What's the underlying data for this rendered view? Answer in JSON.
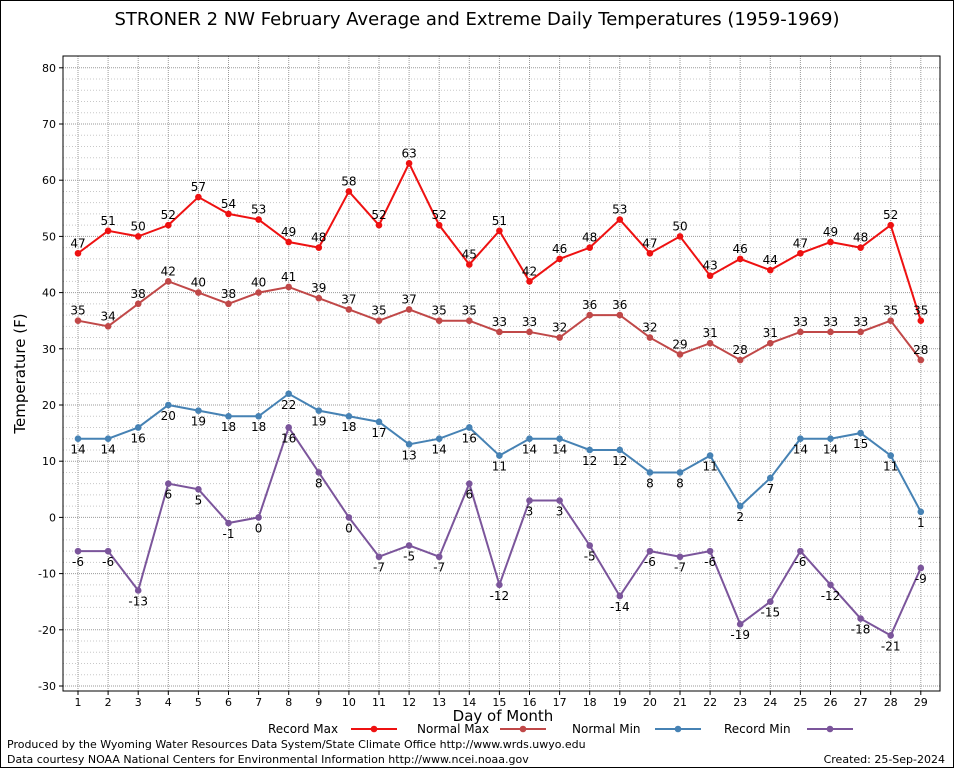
{
  "chart_data": {
    "type": "line",
    "title": "STRONER 2 NW February Average and Extreme Daily Temperatures (1959-1969)",
    "xlabel": "Day of Month",
    "ylabel": "Temperature (F)",
    "ylim": [
      -30,
      80
    ],
    "yticks": [
      -30,
      -20,
      -10,
      0,
      10,
      20,
      30,
      40,
      50,
      60,
      70,
      80
    ],
    "grid": true,
    "legend_position": "bottom",
    "x": [
      1,
      2,
      3,
      4,
      5,
      6,
      7,
      8,
      9,
      10,
      11,
      12,
      13,
      14,
      15,
      16,
      17,
      18,
      19,
      20,
      21,
      22,
      23,
      24,
      25,
      26,
      27,
      28,
      29
    ],
    "series": [
      {
        "name": "Record Max",
        "color": "#ee1111",
        "label_pos": "above",
        "values": [
          47,
          51,
          50,
          52,
          57,
          54,
          53,
          49,
          48,
          58,
          52,
          63,
          52,
          45,
          51,
          42,
          46,
          48,
          53,
          47,
          50,
          43,
          46,
          44,
          47,
          49,
          48,
          52,
          35
        ]
      },
      {
        "name": "Normal Max",
        "color": "#c04848",
        "label_pos": "above",
        "values": [
          35,
          34,
          38,
          42,
          40,
          38,
          40,
          41,
          39,
          37,
          35,
          37,
          35,
          35,
          33,
          33,
          32,
          36,
          36,
          32,
          29,
          31,
          28,
          31,
          33,
          33,
          33,
          35,
          28
        ]
      },
      {
        "name": "Normal Min",
        "color": "#4682b4",
        "label_pos": "below",
        "values": [
          14,
          14,
          16,
          20,
          19,
          18,
          18,
          22,
          19,
          18,
          17,
          13,
          14,
          16,
          11,
          14,
          14,
          12,
          12,
          8,
          8,
          11,
          2,
          7,
          14,
          14,
          15,
          11,
          1
        ]
      },
      {
        "name": "Record Min",
        "color": "#7b559b",
        "label_pos": "below",
        "values": [
          -6,
          -6,
          -13,
          6,
          5,
          -1,
          0,
          16,
          8,
          0,
          -7,
          -5,
          -7,
          6,
          -12,
          3,
          3,
          -5,
          -14,
          -6,
          -7,
          -6,
          -19,
          -15,
          -6,
          -12,
          -18,
          -21,
          -9
        ]
      }
    ]
  },
  "footer": {
    "produced_by": "Produced by the Wyoming Water Resources Data System/State Climate Office http://www.wrds.uwyo.edu",
    "data_courtesy": "Data courtesy NOAA National Centers for Environmental Information http://www.ncei.noaa.gov",
    "created": "Created:  25-Sep-2024"
  }
}
